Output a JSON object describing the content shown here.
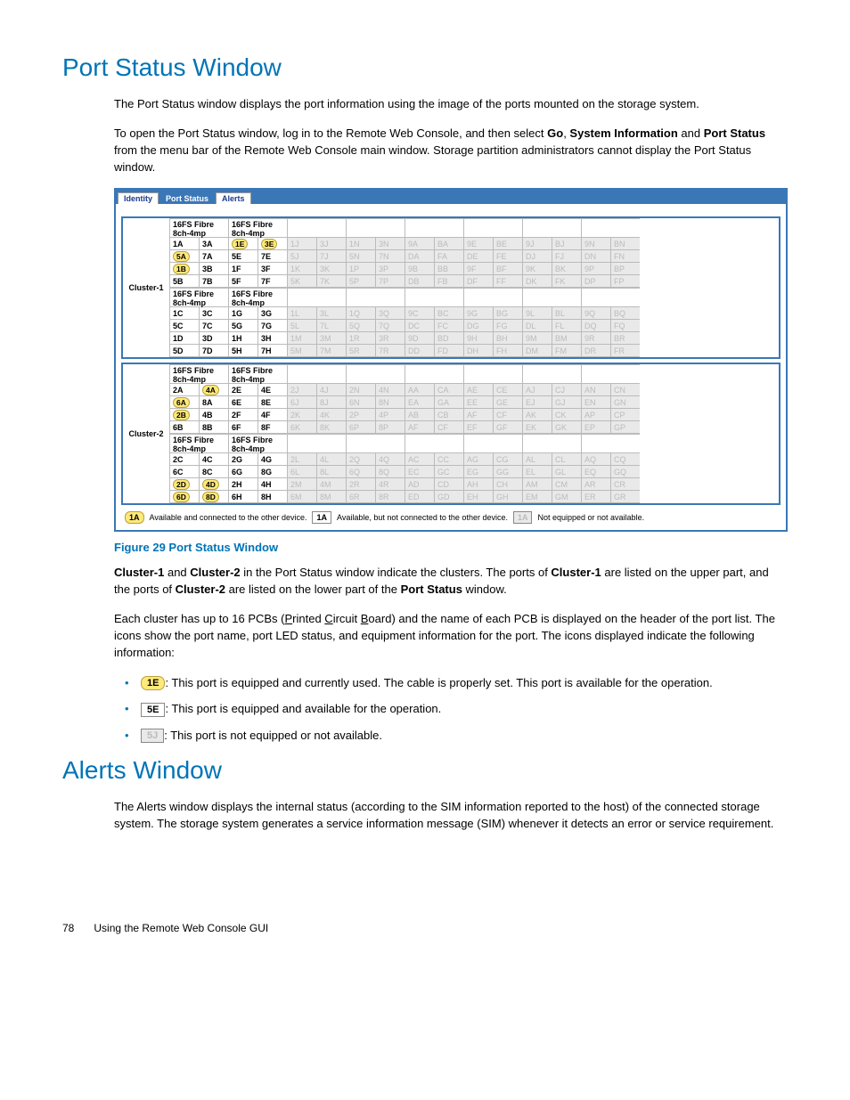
{
  "h1a": "Port Status Window",
  "p1": "The Port Status window displays the port information using the image of the ports mounted on the storage system.",
  "p2a": "To open the Port Status window, log in to the Remote Web Console, and then select ",
  "p2b": "Go",
  "p2c": ", ",
  "p2d": "System Information",
  "p2e": " and ",
  "p2f": "Port Status",
  "p2g": " from the menu bar of the Remote Web Console main window. Storage partition administrators cannot display the Port Status window.",
  "tabs": [
    "Identity",
    "Port Status",
    "Alerts"
  ],
  "activeTab": 1,
  "pcbHeader": "16FS Fibre 8ch-4mp",
  "cluster1": {
    "label": "Cluster-1",
    "blocks": [
      {
        "rowLetters": [
          "A",
          "B"
        ],
        "headers": [
          true,
          true,
          false,
          false,
          false,
          false,
          false,
          false
        ],
        "colBase": [
          1,
          3,
          1,
          3,
          1,
          3,
          1,
          3,
          9,
          "B",
          9,
          "B",
          9,
          "B",
          9,
          "B"
        ],
        "colLetterSets": [
          [
            "A",
            "A"
          ],
          [
            "E",
            "E"
          ],
          [
            "J",
            "J"
          ],
          [
            "N",
            "N"
          ],
          [
            "A",
            "A"
          ],
          [
            "E",
            "E"
          ],
          [
            "J",
            "J"
          ],
          [
            "N",
            "N"
          ]
        ],
        "active": [
          true,
          true,
          false,
          false,
          false,
          false,
          false,
          false
        ],
        "lit": {
          "0": [
            "5A",
            "1B"
          ],
          "1": [
            "1E",
            "3E"
          ]
        }
      },
      {
        "rowLetters": [
          "C",
          "D"
        ],
        "headers": [
          true,
          true,
          false,
          false,
          false,
          false,
          false,
          false
        ],
        "colLetterSets": [
          [
            "C",
            "C"
          ],
          [
            "G",
            "G"
          ],
          [
            "L",
            "L"
          ],
          [
            "Q",
            "Q"
          ],
          [
            "C",
            "C"
          ],
          [
            "G",
            "G"
          ],
          [
            "L",
            "L"
          ],
          [
            "Q",
            "Q"
          ]
        ],
        "active": [
          true,
          true,
          false,
          false,
          false,
          false,
          false,
          false
        ],
        "lit": {}
      }
    ]
  },
  "cluster2": {
    "label": "Cluster-2",
    "blocks": [
      {
        "rowLetters": [
          "A",
          "B"
        ],
        "headers": [
          true,
          true,
          false,
          false,
          false,
          false,
          false,
          false
        ],
        "colLetterSets": [
          [
            "A",
            "A"
          ],
          [
            "E",
            "E"
          ],
          [
            "J",
            "J"
          ],
          [
            "N",
            "N"
          ],
          [
            "A",
            "A"
          ],
          [
            "E",
            "E"
          ],
          [
            "J",
            "J"
          ],
          [
            "N",
            "N"
          ]
        ],
        "active": [
          true,
          true,
          false,
          false,
          false,
          false,
          false,
          false
        ],
        "lit": {
          "0": [
            "4A",
            "6A",
            "2B"
          ]
        }
      },
      {
        "rowLetters": [
          "C",
          "D"
        ],
        "headers": [
          true,
          true,
          false,
          false,
          false,
          false,
          false,
          false
        ],
        "colLetterSets": [
          [
            "C",
            "C"
          ],
          [
            "G",
            "G"
          ],
          [
            "L",
            "L"
          ],
          [
            "Q",
            "Q"
          ],
          [
            "C",
            "C"
          ],
          [
            "G",
            "G"
          ],
          [
            "L",
            "L"
          ],
          [
            "Q",
            "Q"
          ]
        ],
        "active": [
          true,
          true,
          false,
          false,
          false,
          false,
          false,
          false
        ],
        "lit": {
          "0": [
            "2D",
            "4D",
            "6D",
            "8D"
          ]
        }
      }
    ]
  },
  "rowPrefixes1": [
    [
      "1",
      "3",
      "5",
      "7"
    ],
    [
      "5",
      "7",
      "5",
      "7"
    ]
  ],
  "legend": {
    "a_chip": "1A",
    "a_text": "Available and connected to the other device.",
    "b_chip": "1A",
    "b_text": "Available, but not connected to the other device.",
    "c_chip": "1A",
    "c_text": "Not equipped or not available."
  },
  "figcap": "Figure 29 Port Status Window",
  "p3a": "Cluster-1",
  "p3b": " and ",
  "p3c": "Cluster-2",
  "p3d": " in the Port Status window indicate the clusters. The ports of ",
  "p3e": "Cluster-1",
  "p3f": " are listed on the upper part, and the ports of ",
  "p3g": "Cluster-2",
  "p3h": " are listed on the lower part of the ",
  "p3i": "Port Status",
  "p3j": " window.",
  "p4a": "Each cluster has up to 16 PCBs (",
  "p4b": "P",
  "p4c": "rinted ",
  "p4d": "C",
  "p4e": "ircuit ",
  "p4f": "B",
  "p4g": "oard",
  "p4h": ") and the name of each PCB is displayed on the header of the port list. The icons show the port name, port LED status, and equipment information for the port. The icons displayed indicate the following information:",
  "li1chip": "1E",
  "li1": ": This port is equipped and currently used. The cable is properly set. This port is available for the operation.",
  "li2chip": "5E",
  "li2": ": This port is equipped and available for the operation.",
  "li3chip": "5J",
  "li3": ": This port is not equipped or not available.",
  "h1b": "Alerts Window",
  "p5": "The Alerts window displays the internal status (according to the SIM information reported to the host) of the connected storage system. The storage system generates a service information message (SIM) whenever it detects an error or service requirement.",
  "pageno": "78",
  "footertext": "Using the Remote Web Console GUI"
}
